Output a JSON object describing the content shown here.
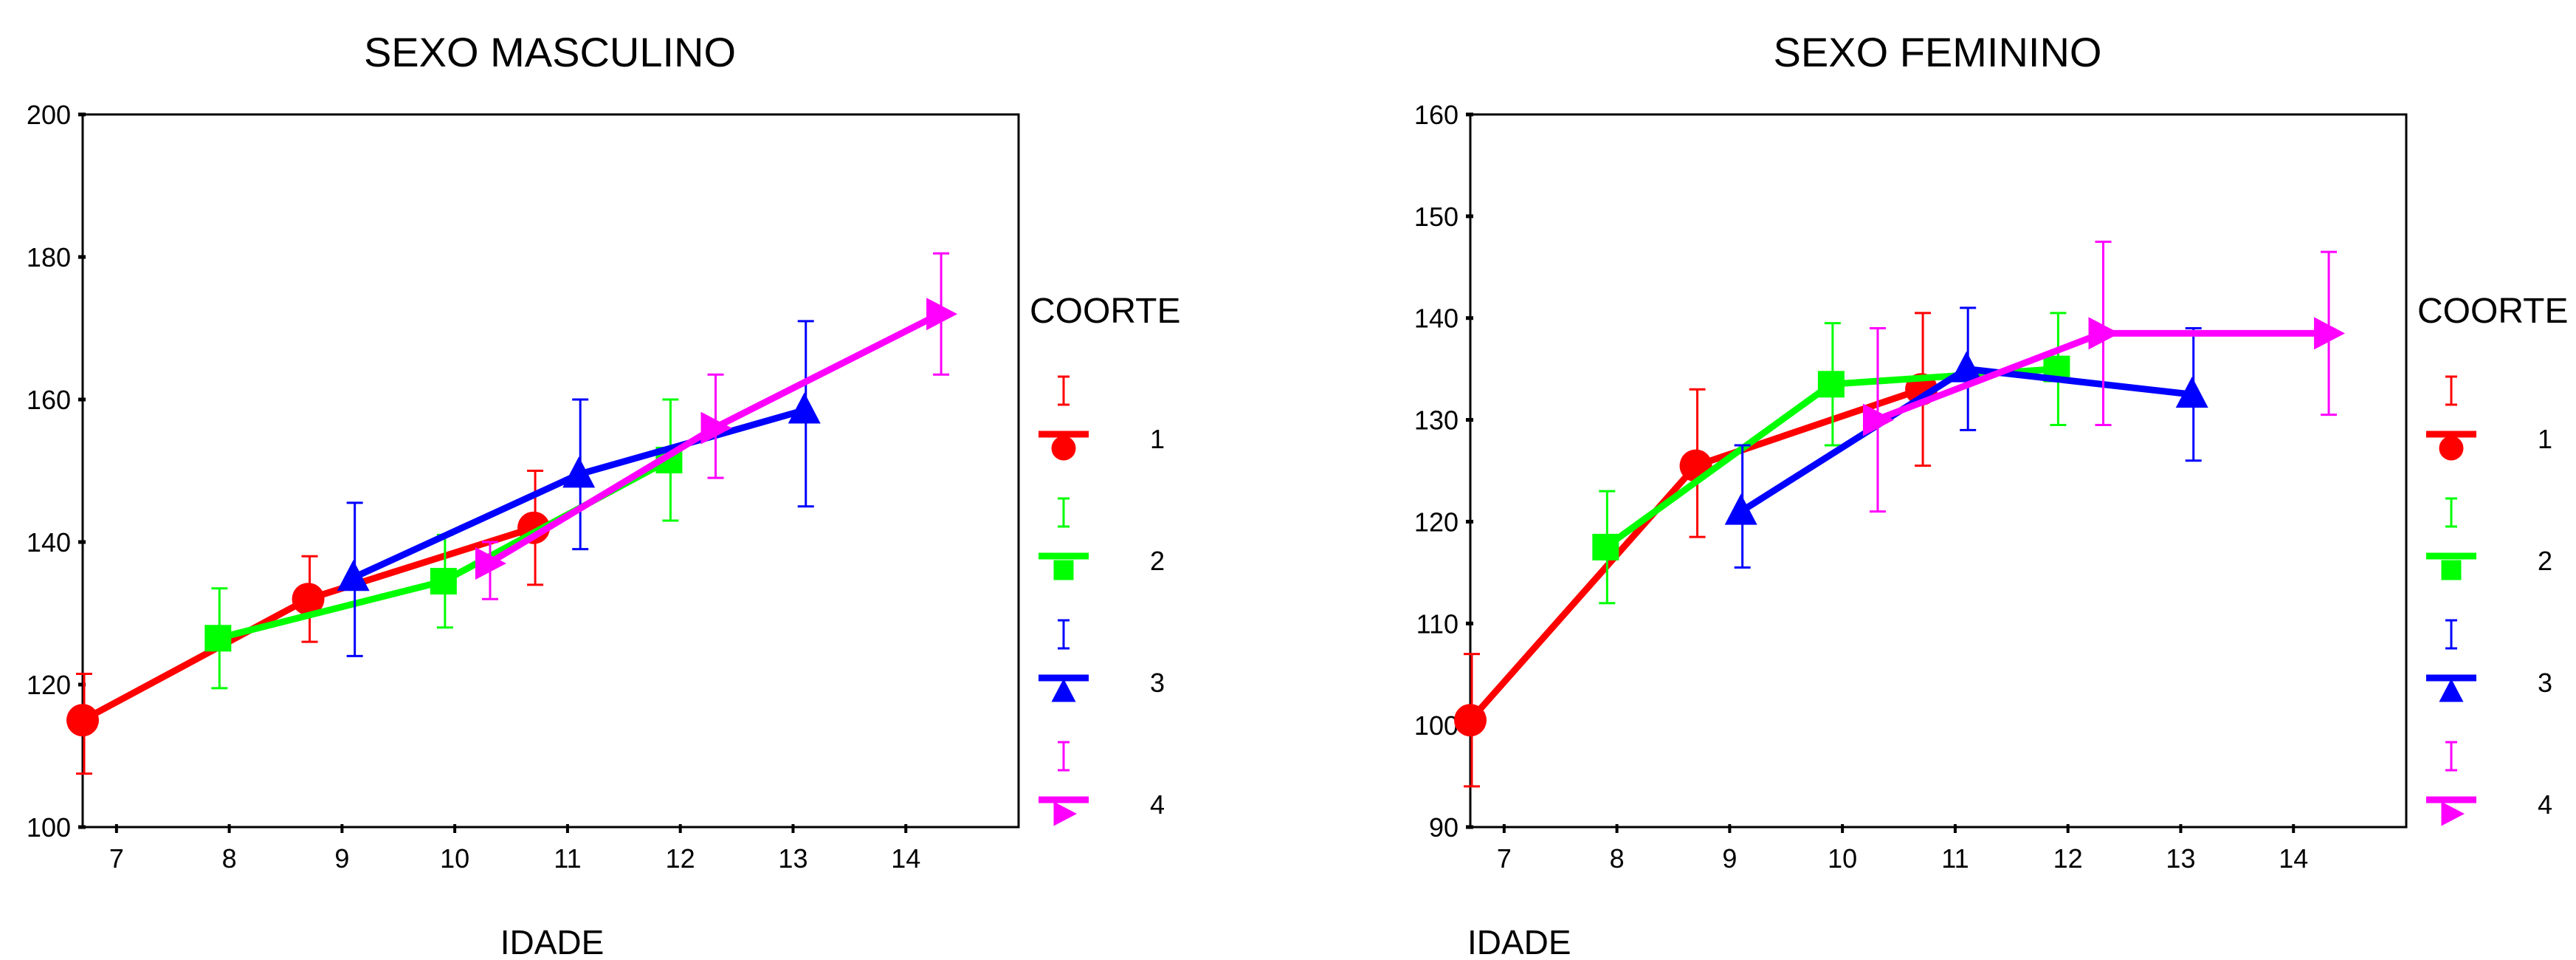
{
  "chart_data": [
    {
      "type": "line",
      "title": "SEXO MASCULINO",
      "xlabel": "IDADE",
      "ylabel": "",
      "xlim": [
        6.7,
        15.0
      ],
      "ylim": [
        100,
        200
      ],
      "x_ticks": [
        7,
        8,
        9,
        10,
        11,
        12,
        13,
        14
      ],
      "y_ticks": [
        100,
        120,
        140,
        160,
        180,
        200
      ],
      "legend_title": "COORTE",
      "legend_position": "right",
      "series": [
        {
          "name": "1",
          "color": "#ff0000",
          "marker": "circle",
          "x": [
            6.7,
            8.7,
            10.7
          ],
          "y": [
            115,
            132,
            142
          ],
          "lower": [
            107.5,
            126,
            134
          ],
          "upper": [
            121.5,
            138,
            150
          ]
        },
        {
          "name": "2",
          "color": "#00ff00",
          "marker": "square",
          "x": [
            7.9,
            9.9,
            11.9
          ],
          "y": [
            126.5,
            134.5,
            151.5
          ],
          "lower": [
            119.5,
            128,
            143
          ],
          "upper": [
            133.5,
            141,
            160
          ]
        },
        {
          "name": "3",
          "color": "#0000ff",
          "marker": "triangle-up",
          "x": [
            9.1,
            11.1,
            13.1
          ],
          "y": [
            135,
            149.5,
            158.5
          ],
          "lower": [
            124,
            139,
            145
          ],
          "upper": [
            145.5,
            160,
            171
          ]
        },
        {
          "name": "4",
          "color": "#ff00ff",
          "marker": "triangle-right",
          "x": [
            10.3,
            12.3,
            14.3
          ],
          "y": [
            137,
            156,
            172
          ],
          "lower": [
            132,
            149,
            163.5
          ],
          "upper": [
            140,
            163.5,
            180.5
          ]
        }
      ]
    },
    {
      "type": "line",
      "title": "SEXO FEMININO",
      "xlabel": "IDADE",
      "ylabel": "",
      "xlim": [
        6.7,
        15.0
      ],
      "ylim": [
        90,
        160
      ],
      "x_ticks": [
        7,
        8,
        9,
        10,
        11,
        12,
        13,
        14
      ],
      "y_ticks": [
        90,
        100,
        110,
        120,
        130,
        140,
        150,
        160
      ],
      "legend_title": "COORTE",
      "legend_position": "right",
      "series": [
        {
          "name": "1",
          "color": "#ff0000",
          "marker": "circle",
          "x": [
            6.7,
            8.7,
            10.7
          ],
          "y": [
            100.5,
            125.5,
            133
          ],
          "lower": [
            94,
            118.5,
            125.5
          ],
          "upper": [
            107,
            133,
            140.5
          ]
        },
        {
          "name": "2",
          "color": "#00ff00",
          "marker": "square",
          "x": [
            7.9,
            9.9,
            11.9
          ],
          "y": [
            117.5,
            133.5,
            135
          ],
          "lower": [
            112,
            127.5,
            129.5
          ],
          "upper": [
            123,
            139.5,
            140.5
          ]
        },
        {
          "name": "3",
          "color": "#0000ff",
          "marker": "triangle-up",
          "x": [
            9.1,
            11.1,
            13.1
          ],
          "y": [
            121,
            135,
            132.5
          ],
          "lower": [
            115.5,
            129,
            126
          ],
          "upper": [
            127.5,
            141,
            139
          ]
        },
        {
          "name": "4",
          "color": "#ff00ff",
          "marker": "triangle-right",
          "x": [
            10.3,
            12.3,
            14.3
          ],
          "y": [
            130,
            138.5,
            138.5
          ],
          "lower": [
            121,
            129.5,
            130.5
          ],
          "upper": [
            139,
            147.5,
            146.5
          ]
        }
      ]
    }
  ]
}
